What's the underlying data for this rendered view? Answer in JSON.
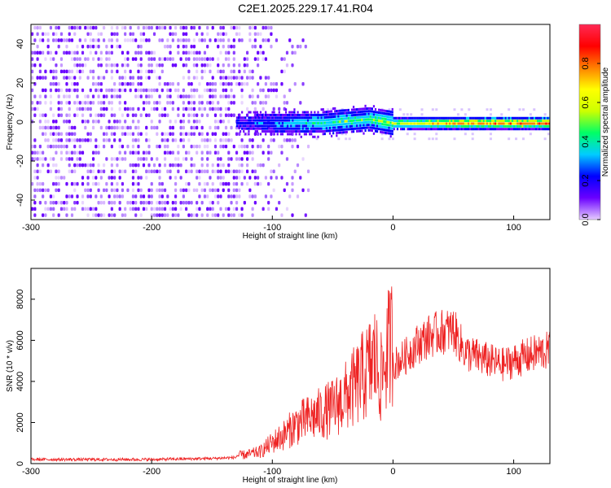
{
  "title": "C2E1.2025.229.17.41.R04",
  "chart_data": [
    {
      "type": "heatmap",
      "xlabel": "Height of straight line (km)",
      "ylabel": "Frequency (Hz)",
      "xlim": [
        -300,
        130
      ],
      "ylim": [
        -50,
        50
      ],
      "xticks": [
        -300,
        -200,
        -100,
        0,
        100
      ],
      "yticks": [
        -40,
        -20,
        0,
        20,
        40
      ],
      "colorbar": {
        "label": "Normalized spectral amplitude",
        "range": [
          0,
          1
        ],
        "ticks": [
          "0.0",
          "0.2",
          "0.4",
          "0.6",
          "0.8"
        ],
        "colors": [
          "#e6ccff",
          "#6a00ff",
          "#0000ff",
          "#00ccff",
          "#00ff66",
          "#ccff00",
          "#ffff00",
          "#ff8000",
          "#ff0000",
          "#ff2a55"
        ]
      },
      "ridge": [
        {
          "x": -130,
          "freq": 0,
          "amplitude": 0.25
        },
        {
          "x": -100,
          "freq": 0,
          "amplitude": 0.35
        },
        {
          "x": -80,
          "freq": 0,
          "amplitude": 0.45
        },
        {
          "x": -60,
          "freq": 0,
          "amplitude": 0.5
        },
        {
          "x": -40,
          "freq": 1,
          "amplitude": 0.55
        },
        {
          "x": -20,
          "freq": 2,
          "amplitude": 0.55
        },
        {
          "x": 0,
          "freq": 0,
          "amplitude": 0.65
        },
        {
          "x": 20,
          "freq": 0,
          "amplitude": 0.75
        },
        {
          "x": 50,
          "freq": 0,
          "amplitude": 0.85
        },
        {
          "x": 100,
          "freq": 0,
          "amplitude": 0.9
        },
        {
          "x": 130,
          "freq": 0,
          "amplitude": 0.9
        }
      ]
    },
    {
      "type": "line",
      "xlabel": "Height of straight line (km)",
      "ylabel": "SNR (10 * v/v)",
      "xlim": [
        -300,
        130
      ],
      "ylim": [
        0,
        9500
      ],
      "xticks": [
        -300,
        -200,
        -100,
        0,
        100
      ],
      "yticks": [
        0,
        2000,
        4000,
        6000,
        8000
      ],
      "series": [
        {
          "color": "#ee2222",
          "x": [
            -300,
            -250,
            -200,
            -150,
            -130,
            -120,
            -110,
            -100,
            -90,
            -80,
            -70,
            -60,
            -50,
            -40,
            -30,
            -20,
            -15,
            -10,
            -5,
            0,
            10,
            20,
            30,
            40,
            50,
            60,
            70,
            80,
            90,
            100,
            110,
            120,
            130
          ],
          "y": [
            200,
            200,
            200,
            250,
            300,
            350,
            450,
            800,
            1100,
            1500,
            1700,
            1900,
            2100,
            2500,
            3000,
            3600,
            4000,
            3200,
            4200,
            4800,
            5200,
            5800,
            6200,
            6400,
            6500,
            5400,
            5200,
            5000,
            4800,
            5000,
            5200,
            5400,
            5500
          ]
        }
      ]
    }
  ]
}
